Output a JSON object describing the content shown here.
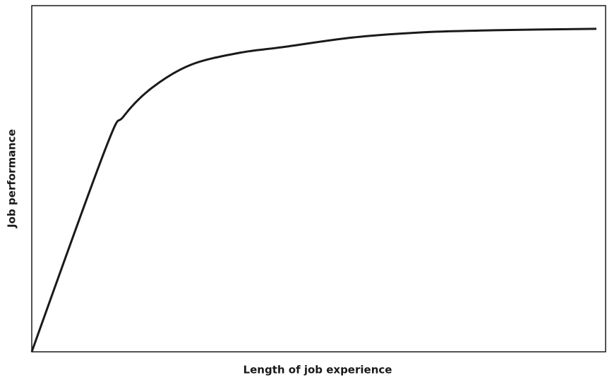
{
  "chart_data": {
    "type": "line",
    "xlabel": "Length of job experience",
    "ylabel": "Job performance",
    "x": [
      0,
      12.9,
      16.0,
      20.9,
      27.7,
      36.3,
      43.7,
      56.0,
      68.3,
      80.6,
      98.4
    ],
    "series": [
      {
        "color": "#1a1a1a",
        "values": [
          0,
          58.9,
          68.0,
          76.2,
          82.9,
          86.4,
          88.0,
          90.8,
          92.3,
          92.9,
          93.3
        ]
      }
    ],
    "xlim": [
      0,
      100
    ],
    "ylim": [
      0,
      100
    ]
  }
}
